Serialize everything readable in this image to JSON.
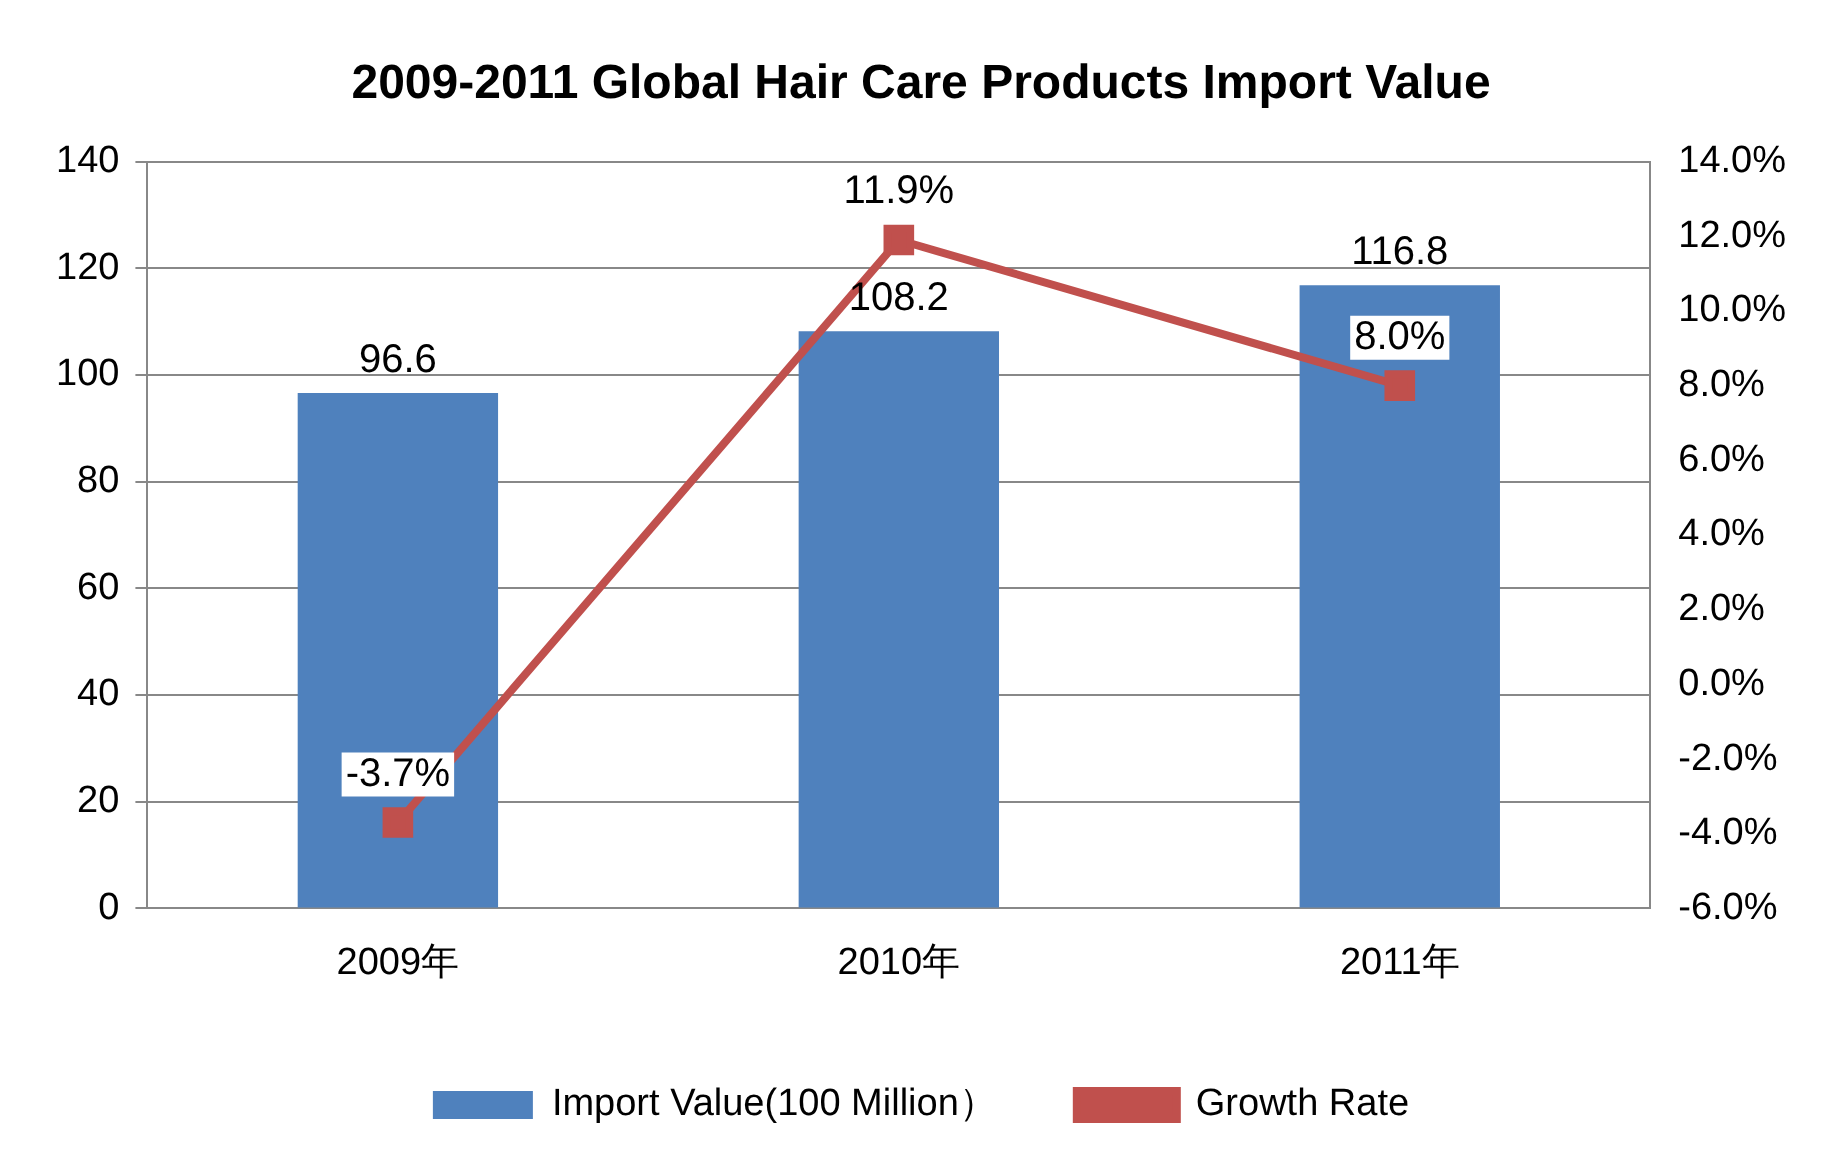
{
  "chart_data": {
    "type": "bar",
    "title": "2009-2011 Global Hair Care Products Import Value",
    "categories": [
      "2009年",
      "2010年",
      "2011年"
    ],
    "series": [
      {
        "name": "Import Value(100 Million）",
        "color": "#4f81bd",
        "values": [
          96.6,
          108.2,
          116.8
        ],
        "value_labels": [
          "96.6",
          "108.2",
          "116.8"
        ]
      },
      {
        "name": "Growth Rate",
        "type": "line",
        "axis": "y2",
        "color": "#c0504d",
        "values": [
          -3.7,
          11.9,
          8.0
        ],
        "value_labels": [
          "-3.7%",
          "11.9%",
          "8.0%"
        ]
      }
    ],
    "ylim": [
      0,
      140
    ],
    "yticks": [
      0,
      20,
      40,
      60,
      80,
      100,
      120,
      140
    ],
    "y2lim": [
      -6,
      14
    ],
    "y2ticks": [
      {
        "value": -6,
        "label": "-6.0%"
      },
      {
        "value": -4,
        "label": "-4.0%"
      },
      {
        "value": -2,
        "label": "-2.0%"
      },
      {
        "value": 0,
        "label": "0.0%"
      },
      {
        "value": 2,
        "label": "2.0%"
      },
      {
        "value": 4,
        "label": "4.0%"
      },
      {
        "value": 6,
        "label": "6.0%"
      },
      {
        "value": 8,
        "label": "8.0%"
      },
      {
        "value": 10,
        "label": "10.0%"
      },
      {
        "value": 12,
        "label": "12.0%"
      },
      {
        "value": 14,
        "label": "14.0%"
      }
    ],
    "grid": "y",
    "legend": "bottom",
    "marker": "square",
    "line_style": "solid"
  }
}
